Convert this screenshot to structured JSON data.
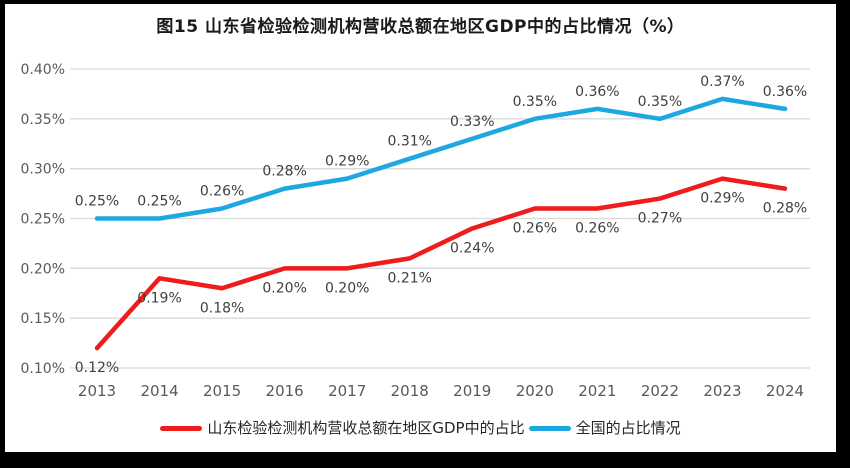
{
  "chart_data": {
    "type": "line",
    "title": "图15  山东省检验检测机构营收总额在地区GDP中的占比情况（%）",
    "x": [
      "2013",
      "2014",
      "2015",
      "2016",
      "2017",
      "2018",
      "2019",
      "2020",
      "2021",
      "2022",
      "2023",
      "2024"
    ],
    "xlabel": "",
    "ylabel": "",
    "ylim": [
      0.1,
      0.4
    ],
    "grid": true,
    "legend_position": "bottom",
    "gridline_color": "#d9d9d9",
    "tick_label_color": "#595959",
    "data_label_color": "#3f3f3f",
    "yticks": [
      {
        "value": 0.1,
        "label": "0.10%"
      },
      {
        "value": 0.15,
        "label": "0.15%"
      },
      {
        "value": 0.2,
        "label": "0.20%"
      },
      {
        "value": 0.25,
        "label": "0.25%"
      },
      {
        "value": 0.3,
        "label": "0.30%"
      },
      {
        "value": 0.35,
        "label": "0.35%"
      },
      {
        "value": 0.4,
        "label": "0.40%"
      }
    ],
    "series": [
      {
        "id": "shandong",
        "name": "山东检验检测机构营收总额在地区GDP中的占比",
        "color": "#ee1c1c",
        "label_position": "below",
        "values": [
          0.12,
          0.19,
          0.18,
          0.2,
          0.2,
          0.21,
          0.24,
          0.26,
          0.26,
          0.27,
          0.29,
          0.28
        ],
        "labels": [
          "0.12%",
          "0.19%",
          "0.18%",
          "0.20%",
          "0.20%",
          "0.21%",
          "0.24%",
          "0.26%",
          "0.26%",
          "0.27%",
          "0.29%",
          "0.28%"
        ]
      },
      {
        "id": "national",
        "name": "全国的占比情况",
        "color": "#1ea7e0",
        "label_position": "above",
        "values": [
          0.25,
          0.25,
          0.26,
          0.28,
          0.29,
          0.31,
          0.33,
          0.35,
          0.36,
          0.35,
          0.37,
          0.36
        ],
        "labels": [
          "0.25%",
          "0.25%",
          "0.26%",
          "0.28%",
          "0.29%",
          "0.31%",
          "0.33%",
          "0.35%",
          "0.36%",
          "0.35%",
          "0.37%",
          "0.36%"
        ]
      }
    ]
  }
}
